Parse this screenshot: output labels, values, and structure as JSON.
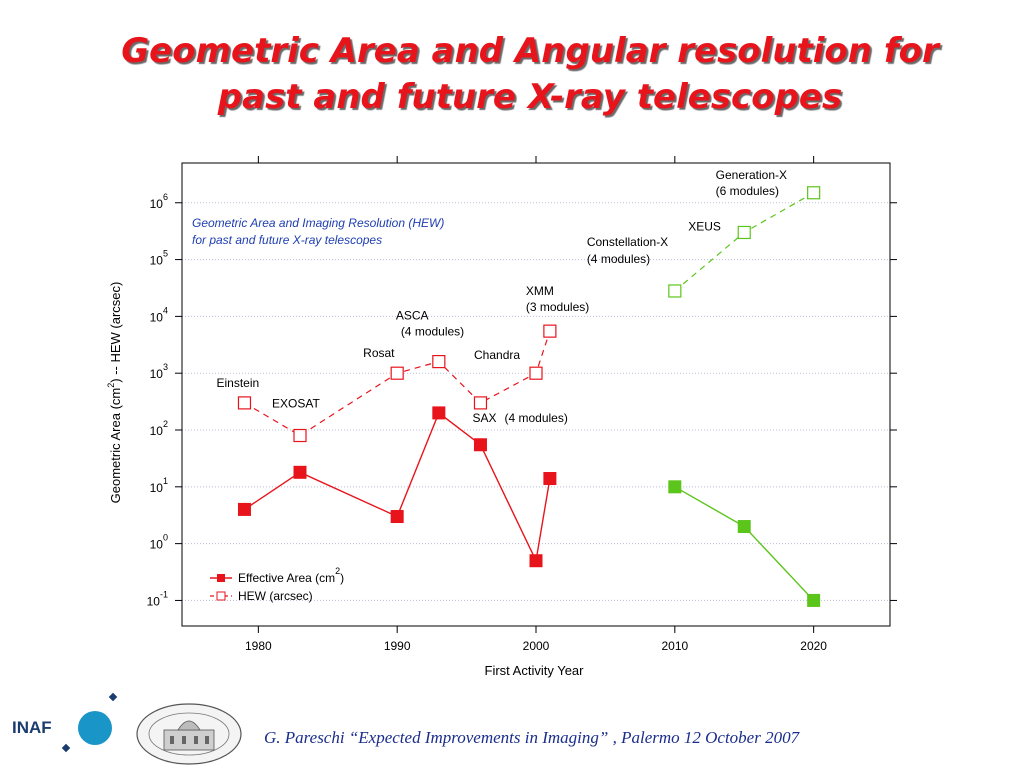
{
  "slide": {
    "title_line1": "Geometric Area and Angular resolution for",
    "title_line2": "past and future X-ray telescopes",
    "footer": "G. Pareschi “Expected Improvements in Imaging” , Palermo 12 October 2007",
    "logo_text": "INAF",
    "seal_text": "OSSERVATORIO ASTRONOMICO DI BRERA",
    "colors": {
      "title": "#e8141c",
      "footer": "#1a2d8c",
      "inaf_blue": "#1a95c8",
      "inaf_dark": "#1a3c6e"
    }
  },
  "chart_data": {
    "type": "scatter",
    "title": "",
    "subtitle_line1": "Geometric Area and Imaging Resolution (HEW)",
    "subtitle_line2": "for past and future X-ray telescopes",
    "xlabel": "First Activity Year",
    "ylabel_parts": [
      "Geometric Area (cm",
      "2",
      ") -- HEW (arcsec)"
    ],
    "xlim": [
      1974.5,
      2025.5
    ],
    "ylim_log10": [
      -1.45,
      6.7
    ],
    "y_scale": "log",
    "x_ticks": [
      1980,
      1990,
      2000,
      2010,
      2020
    ],
    "y_ticks": [
      {
        "exp": -1,
        "base": "10",
        "sup": "-1"
      },
      {
        "exp": 0,
        "base": "10",
        "sup": "0"
      },
      {
        "exp": 1,
        "base": "10",
        "sup": "1"
      },
      {
        "exp": 2,
        "base": "10",
        "sup": "2"
      },
      {
        "exp": 3,
        "base": "10",
        "sup": "3"
      },
      {
        "exp": 4,
        "base": "10",
        "sup": "4"
      },
      {
        "exp": 5,
        "base": "10",
        "sup": "5"
      },
      {
        "exp": 6,
        "base": "10",
        "sup": "6"
      }
    ],
    "grid": "horizontal dotted",
    "legend_position": "bottom-left",
    "colors": {
      "past": "#e8141c",
      "future": "#5cc51c",
      "subtitle": "#1f3fb0",
      "grid": "#b8bfd8"
    },
    "series": [
      {
        "name": "Effective Area (cm",
        "name_sup": "2",
        "name_end": ")",
        "marker": "filled-square",
        "line": "solid",
        "groups": [
          {
            "color_key": "past",
            "points": [
              [
                1979,
                4
              ],
              [
                1983,
                18
              ],
              [
                1990,
                3
              ],
              [
                1993,
                200
              ],
              [
                1996,
                55
              ],
              [
                2000,
                0.5
              ],
              [
                2001,
                14
              ]
            ]
          },
          {
            "color_key": "future",
            "points": [
              [
                2010,
                10
              ],
              [
                2015,
                2
              ],
              [
                2020,
                0.1
              ]
            ]
          }
        ]
      },
      {
        "name": "HEW (arcsec)",
        "marker": "open-square",
        "line": "dashed",
        "groups": [
          {
            "color_key": "past",
            "points": [
              [
                1979,
                300
              ],
              [
                1983,
                80
              ],
              [
                1990,
                1000
              ],
              [
                1993,
                1600
              ],
              [
                1996,
                300
              ],
              [
                2000,
                1000
              ],
              [
                2001,
                5500
              ]
            ]
          },
          {
            "color_key": "future",
            "points": [
              [
                2010,
                28000
              ],
              [
                2015,
                300000
              ],
              [
                2020,
                1500000
              ]
            ]
          }
        ]
      }
    ],
    "annotations": [
      {
        "text": "Einstein",
        "x": 1979,
        "y": 300,
        "dx": -28,
        "dy": -16
      },
      {
        "text": "EXOSAT",
        "x": 1983,
        "y": 80,
        "dx": -28,
        "dy": -28
      },
      {
        "text": "Rosat",
        "x": 1990,
        "y": 1000,
        "dx": -34,
        "dy": -16
      },
      {
        "text": "ASCA",
        "x": 1993,
        "y": 1600,
        "dx": -43,
        "dy": -42
      },
      {
        "text": "(4 modules)",
        "x": 1993,
        "y": 1600,
        "dx": -38,
        "dy": -26
      },
      {
        "text": "Chandra",
        "x": 2000,
        "y": 1000,
        "dx": -62,
        "dy": -14
      },
      {
        "text": "SAX",
        "x": 1996,
        "y": 300,
        "dx": -8,
        "dy": 19
      },
      {
        "text": "(4 modules)",
        "x": 1996,
        "y": 300,
        "dx": 24,
        "dy": 19
      },
      {
        "text": "XMM",
        "x": 2001,
        "y": 5500,
        "dx": -24,
        "dy": -36
      },
      {
        "text": "(3 modules)",
        "x": 2001,
        "y": 5500,
        "dx": -24,
        "dy": -20
      },
      {
        "text": "Constellation-X",
        "x": 2010,
        "y": 28000,
        "dx": -88,
        "dy": -45
      },
      {
        "text": "(4 modules)",
        "x": 2010,
        "y": 28000,
        "dx": -88,
        "dy": -28
      },
      {
        "text": "XEUS",
        "x": 2015,
        "y": 300000,
        "dx": -56,
        "dy": -2
      },
      {
        "text": "Generation-X",
        "x": 2020,
        "y": 1500000,
        "dx": -98,
        "dy": -14
      },
      {
        "text": "(6 modules)",
        "x": 2020,
        "y": 1500000,
        "dx": -98,
        "dy": 2
      }
    ]
  }
}
